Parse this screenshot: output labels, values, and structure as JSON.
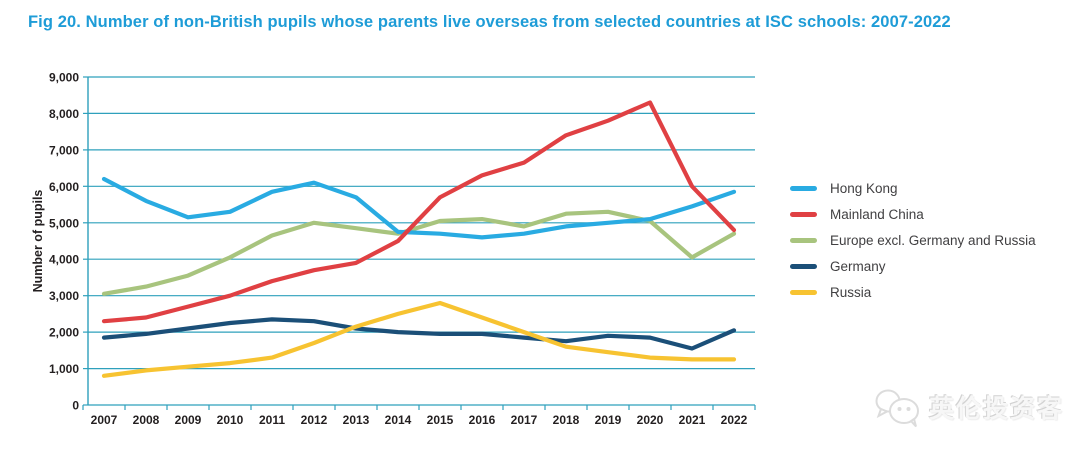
{
  "figure": {
    "title": "Fig 20. Number of non-British pupils whose parents live overseas from selected countries at ISC schools: 2007-2022"
  },
  "colors": {
    "title": "#1E9CD7",
    "grid": "#2EA0BC",
    "axis_text": "#231F20",
    "legend_text": "#414042"
  },
  "chart_data": {
    "type": "line",
    "title": "Fig 20. Number of non-British pupils whose parents live overseas from selected countries at ISC schools: 2007-2022",
    "xlabel": "",
    "ylabel": "Number of pupils",
    "ylim": [
      0,
      9000
    ],
    "ytick_step": 1000,
    "y_tick_labels": [
      "9,000",
      "8,000",
      "7,000",
      "6,000",
      "5,000",
      "4,000",
      "3,000",
      "2,000",
      "1,000",
      "0"
    ],
    "grid": true,
    "legend_position": "right",
    "categories": [
      "2007",
      "2008",
      "2009",
      "2010",
      "2011",
      "2012",
      "2013",
      "2014",
      "2015",
      "2016",
      "2017",
      "2018",
      "2019",
      "2020",
      "2021",
      "2022"
    ],
    "series": [
      {
        "name": "Hong Kong",
        "color": "#29ABE2",
        "values": [
          6200,
          5600,
          5150,
          5300,
          5850,
          6100,
          5700,
          4750,
          4700,
          4600,
          4700,
          4900,
          5000,
          5100,
          5450,
          5850
        ]
      },
      {
        "name": "Mainland China",
        "color": "#E04043",
        "values": [
          2300,
          2400,
          2700,
          3000,
          3400,
          3700,
          3900,
          4500,
          5700,
          6300,
          6650,
          7400,
          7800,
          8300,
          6000,
          4800
        ]
      },
      {
        "name": "Europe excl. Germany and Russia",
        "color": "#A8C47E",
        "values": [
          3050,
          3250,
          3550,
          4050,
          4650,
          5000,
          4850,
          4700,
          5050,
          5100,
          4900,
          5250,
          5300,
          5050,
          4050,
          4700
        ]
      },
      {
        "name": "Germany",
        "color": "#1B4F78",
        "values": [
          1850,
          1950,
          2100,
          2250,
          2350,
          2300,
          2100,
          2000,
          1950,
          1950,
          1850,
          1750,
          1900,
          1850,
          1550,
          2050
        ]
      },
      {
        "name": "Russia",
        "color": "#F7C331",
        "values": [
          800,
          950,
          1050,
          1150,
          1300,
          1700,
          2150,
          2500,
          2800,
          2400,
          2000,
          1600,
          1450,
          1300,
          1250,
          1250
        ]
      }
    ]
  },
  "watermark": {
    "text": "英伦投资客",
    "icon": "wechat-icon"
  }
}
